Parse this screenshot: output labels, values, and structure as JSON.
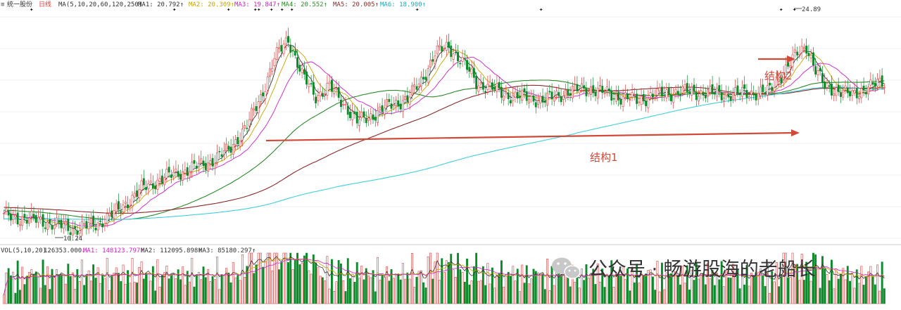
{
  "chart_data": [
    {
      "type": "candlestick",
      "stock_name": "统一股份",
      "period_label": "日线",
      "header": {
        "ma_params": "MA(5,10,20,60,120,250)",
        "ma1": "MA1: 20.792↑",
        "ma2": "MA2: 20.309↑",
        "ma3": "MA3: 19.847↑",
        "ma4": "MA4: 20.552↑",
        "ma5": "MA5: 20.005↑",
        "ma6": "MA6: 18.900↑"
      },
      "ylim": [
        9.4,
        25.6
      ],
      "high_label": "24.89",
      "low_label": "10.24",
      "high_value": 24.89,
      "low_value": 10.24,
      "annotations": [
        "结构1",
        "结构2"
      ],
      "grid": true,
      "colors": {
        "up": "#e03b3b",
        "down": "#0b8a2a",
        "ma5": "#333333",
        "ma10": "#c9a400",
        "ma20": "#d01fc8",
        "ma60": "#2a8a2a",
        "ma120": "#8a2a2a",
        "ma250": "#3fd0dc",
        "arrow": "#d04a3a"
      }
    },
    {
      "type": "bar",
      "header": {
        "params": "VOL(5,10,20)",
        "value": "126353.000↓",
        "ma1": "MA1: 148123.797↑",
        "ma2": "MA2: 112095.898↑",
        "ma3": "MA3: 85180.297↑"
      }
    }
  ],
  "watermark": {
    "icon": "wechat-icon",
    "text": "公众号 · 畅游股海的老船长"
  }
}
